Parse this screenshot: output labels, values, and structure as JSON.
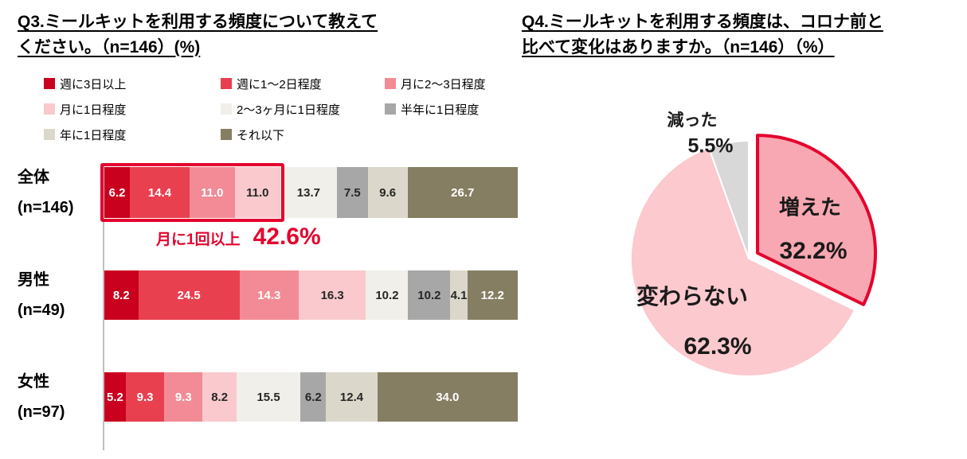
{
  "titles": {
    "q3": [
      "Q3.ミールキットを利用する頻度について教えて",
      "ください。（n=146）(%)"
    ],
    "q4": [
      "Q4.ミールキットを利用する頻度は、コロナ前と",
      "比べて変化はありますか。（n=146）（%）"
    ]
  },
  "chart_data": [
    {
      "type": "bar",
      "stacked": true,
      "orientation": "horizontal",
      "title": "Q3.ミールキットを利用する頻度について教えてください。（n=146）(%)",
      "categories": [
        "週に3日以上",
        "週に1～2日程度",
        "月に2～3日程度",
        "月に1日程度",
        "2～3ヶ月に1日程度",
        "半年に1日程度",
        "年に1日程度",
        "それ以下"
      ],
      "colors": [
        "#C9001E",
        "#E8404F",
        "#F28B95",
        "#F9C9CD",
        "#F1EFE9",
        "#A7A7A7",
        "#DBD7CB",
        "#857E62"
      ],
      "label_colors": [
        "#FFFFFF",
        "#FFFFFF",
        "#FFFFFF",
        "#262626",
        "#262626",
        "#262626",
        "#262626",
        "#FFFFFF"
      ],
      "xlim": [
        0,
        100
      ],
      "rows": [
        {
          "label": "全体",
          "sub": "(n=146)",
          "values": [
            6.2,
            14.4,
            11.0,
            11.0,
            13.7,
            7.5,
            9.6,
            26.7
          ]
        },
        {
          "label": "男性",
          "sub": "(n=49)",
          "values": [
            8.2,
            24.5,
            14.3,
            16.3,
            10.2,
            10.2,
            4.1,
            12.2
          ]
        },
        {
          "label": "女性",
          "sub": "(n=97)",
          "values": [
            5.2,
            9.3,
            9.3,
            8.2,
            15.5,
            6.2,
            12.4,
            34.0
          ]
        }
      ],
      "annotation": {
        "label": "月に1回以上",
        "value": "42.6%",
        "segments_highlighted": 4,
        "color": "#E4032E"
      },
      "legend_position": "top",
      "grid": false
    },
    {
      "type": "pie",
      "title": "Q4.ミールキットを利用する頻度は、コロナ前と比べて変化はありますか。（n=146）（%）",
      "start_angle_deg": 0,
      "direction": "clockwise",
      "slices": [
        {
          "label": "増えた",
          "value": 32.2,
          "display": "32.2%",
          "color": "#F7A8B2",
          "border": "#E4032E",
          "exploded": true
        },
        {
          "label": "変わらない",
          "value": 62.3,
          "display": "62.3%",
          "color": "#FBC9CE",
          "exploded": false
        },
        {
          "label": "減った",
          "value": 5.5,
          "display": "5.5%",
          "color": "#D8D8D8",
          "exploded": false
        }
      ]
    }
  ]
}
